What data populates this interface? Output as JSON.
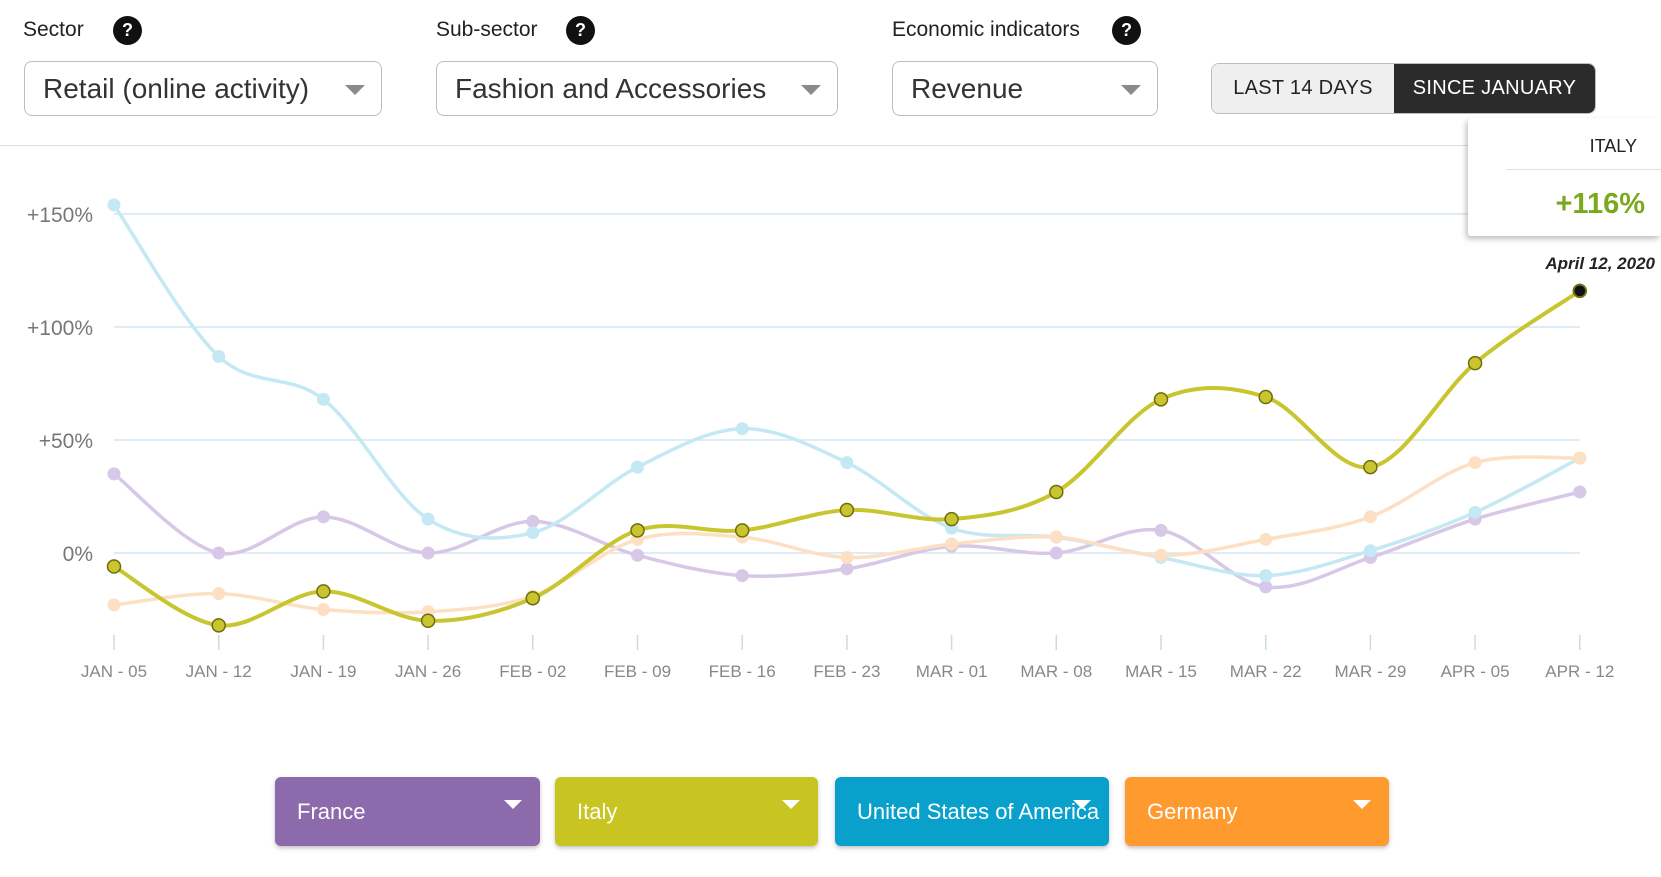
{
  "filters": {
    "sector": {
      "label": "Sector",
      "value": "Retail (online activity)"
    },
    "subsector": {
      "label": "Sub-sector",
      "value": "Fashion and Accessories"
    },
    "indicator": {
      "label": "Economic indicators",
      "value": "Revenue"
    },
    "help_glyph": "?"
  },
  "range_toggle": {
    "options": [
      "LAST 14 DAYS",
      "SINCE JANUARY"
    ],
    "active": "SINCE JANUARY"
  },
  "tooltip": {
    "country": "ITALY",
    "value": "+116%",
    "date": "April 12, 2020"
  },
  "legend": [
    {
      "name": "France",
      "color": "#8c6aab"
    },
    {
      "name": "Italy",
      "color": "#c8c522"
    },
    {
      "name": "United States of America",
      "color": "#0aa0cc"
    },
    {
      "name": "Germany",
      "color": "#ff9a2e"
    }
  ],
  "chart_data": {
    "type": "line",
    "categories": [
      "JAN - 05",
      "JAN - 12",
      "JAN - 19",
      "JAN - 26",
      "FEB - 02",
      "FEB - 09",
      "FEB - 16",
      "FEB - 23",
      "MAR - 01",
      "MAR - 08",
      "MAR - 15",
      "MAR - 22",
      "MAR - 29",
      "APR - 05",
      "APR - 12"
    ],
    "yticks": [
      0,
      50,
      100,
      150
    ],
    "ytick_labels": [
      "0%",
      "+50%",
      "+100%",
      "+150%"
    ],
    "ylim": [
      -40,
      160
    ],
    "highlighted": "Italy",
    "series": [
      {
        "name": "France",
        "color": "#d6c8e6",
        "values": [
          35,
          0,
          16,
          0,
          14,
          -1,
          -10,
          -7,
          3,
          0,
          10,
          -15,
          -2,
          15,
          27
        ]
      },
      {
        "name": "Italy",
        "color": "#c8c52e",
        "values": [
          -6,
          -32,
          -17,
          -30,
          -20,
          10,
          10,
          19,
          15,
          27,
          68,
          69,
          38,
          84,
          116
        ]
      },
      {
        "name": "United States of America",
        "color": "#c4e8f4",
        "values": [
          154,
          87,
          68,
          15,
          9,
          38,
          55,
          40,
          11,
          7,
          -2,
          -10,
          1,
          18,
          42
        ]
      },
      {
        "name": "Germany",
        "color": "#fde0c4",
        "values": [
          -23,
          -18,
          -25,
          -26,
          -19,
          6,
          7,
          -2,
          4,
          7,
          -1,
          6,
          16,
          40,
          42
        ]
      }
    ]
  }
}
